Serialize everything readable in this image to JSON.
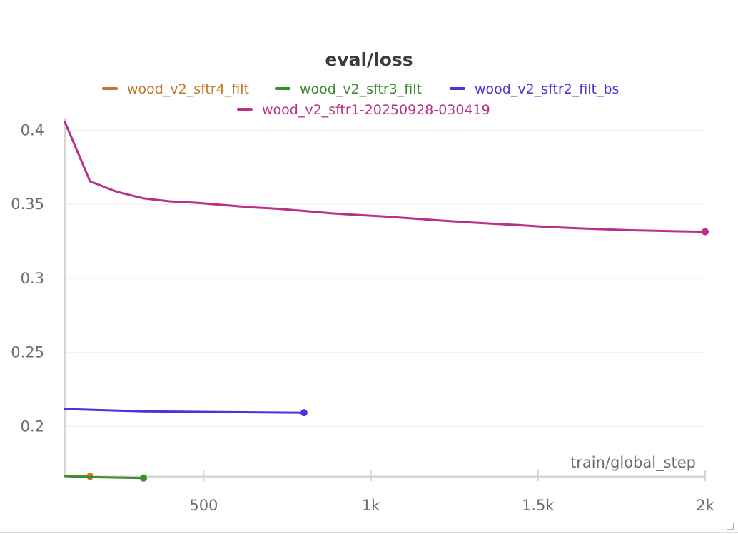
{
  "chart_data": {
    "type": "line",
    "title": "eval/loss",
    "xlabel": "train/global_step",
    "ylabel": "",
    "xlim": [
      85,
      2000
    ],
    "ylim": [
      0.166,
      0.406
    ],
    "x_ticks": [
      500,
      1000,
      1500,
      2000
    ],
    "x_tick_labels": [
      "500",
      "1k",
      "1.5k",
      "2k"
    ],
    "y_ticks": [
      0.2,
      0.25,
      0.3,
      0.35,
      0.4
    ],
    "y_tick_labels": [
      "0.2",
      "0.25",
      "0.3",
      "0.35",
      "0.4"
    ],
    "grid": true,
    "legend_position": "top",
    "series": [
      {
        "name": "wood_v2_sftr4_filt",
        "color": "#c0782a",
        "x": [
          85,
          160
        ],
        "y": [
          0.1665,
          0.1663
        ]
      },
      {
        "name": "wood_v2_sftr3_filt",
        "color": "#3e8a2e",
        "x": [
          85,
          160,
          320
        ],
        "y": [
          0.1665,
          0.1658,
          0.1652
        ]
      },
      {
        "name": "wood_v2_sftr2_filt_bs",
        "color": "#4a34dc",
        "x": [
          85,
          320,
          800
        ],
        "y": [
          0.2118,
          0.2102,
          0.2093
        ]
      },
      {
        "name": "wood_v2_sftr1-20250928-030419",
        "color": "#b8308a",
        "x": [
          85,
          160,
          240,
          320,
          400,
          480,
          560,
          640,
          720,
          800,
          880,
          960,
          1040,
          1120,
          1200,
          1280,
          1360,
          1440,
          1520,
          1600,
          1680,
          1760,
          1840,
          1920,
          2000
        ],
        "y": [
          0.4055,
          0.3655,
          0.3585,
          0.354,
          0.352,
          0.351,
          0.3495,
          0.348,
          0.347,
          0.3455,
          0.344,
          0.3428,
          0.3418,
          0.3405,
          0.3392,
          0.338,
          0.337,
          0.336,
          0.3348,
          0.334,
          0.3333,
          0.3326,
          0.3322,
          0.3318,
          0.3315
        ]
      }
    ]
  }
}
